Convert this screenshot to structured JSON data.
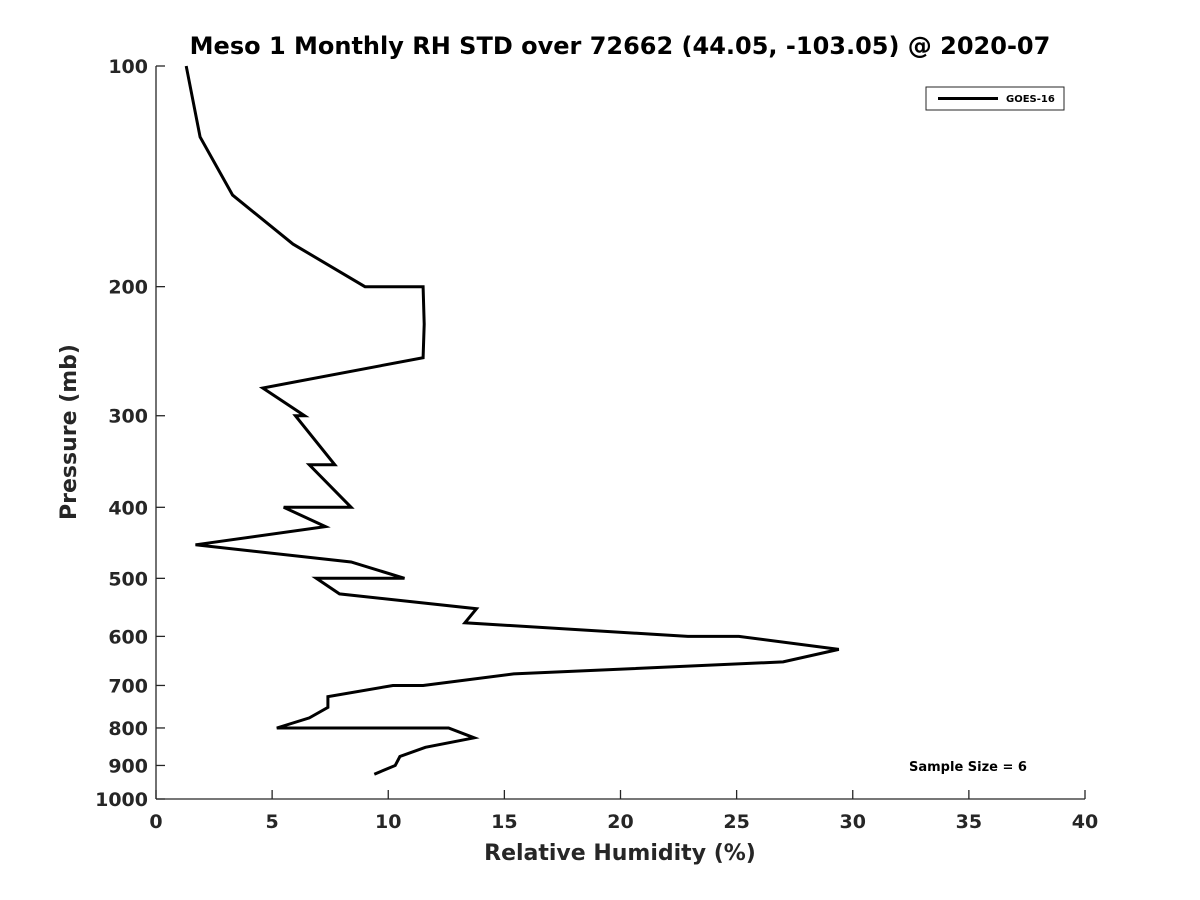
{
  "chart_data": {
    "type": "line",
    "title": "Meso 1 Monthly RH STD over 72662 (44.05, -103.05) @ 2020-07",
    "xlabel": "Relative Humidity (%)",
    "ylabel": "Pressure (mb)",
    "xlim": [
      0,
      40
    ],
    "ylim": [
      100,
      1000
    ],
    "y_scale": "log",
    "y_reversed": true,
    "x_ticks": [
      0,
      5,
      10,
      15,
      20,
      25,
      30,
      35,
      40
    ],
    "y_ticks": [
      100,
      200,
      300,
      400,
      500,
      600,
      700,
      800,
      900,
      1000
    ],
    "grid": false,
    "legend_position": "top-right",
    "annotation": "Sample Size = 6",
    "series": [
      {
        "name": "GOES-16",
        "color": "#000000",
        "points": [
          {
            "x": 1.3,
            "y": 100
          },
          {
            "x": 1.9,
            "y": 125
          },
          {
            "x": 3.3,
            "y": 150
          },
          {
            "x": 5.9,
            "y": 175
          },
          {
            "x": 9.0,
            "y": 200
          },
          {
            "x": 11.5,
            "y": 200
          },
          {
            "x": 11.55,
            "y": 225
          },
          {
            "x": 11.5,
            "y": 250
          },
          {
            "x": 4.6,
            "y": 275
          },
          {
            "x": 6.4,
            "y": 300
          },
          {
            "x": 6.0,
            "y": 300
          },
          {
            "x": 7.7,
            "y": 350
          },
          {
            "x": 6.6,
            "y": 350
          },
          {
            "x": 8.4,
            "y": 400
          },
          {
            "x": 5.5,
            "y": 400
          },
          {
            "x": 7.3,
            "y": 425
          },
          {
            "x": 1.7,
            "y": 450
          },
          {
            "x": 8.4,
            "y": 475
          },
          {
            "x": 10.7,
            "y": 500
          },
          {
            "x": 6.9,
            "y": 500
          },
          {
            "x": 7.9,
            "y": 525
          },
          {
            "x": 13.8,
            "y": 550
          },
          {
            "x": 13.3,
            "y": 575
          },
          {
            "x": 22.9,
            "y": 600
          },
          {
            "x": 25.1,
            "y": 600
          },
          {
            "x": 29.4,
            "y": 625
          },
          {
            "x": 27.0,
            "y": 650
          },
          {
            "x": 15.4,
            "y": 675
          },
          {
            "x": 11.5,
            "y": 700
          },
          {
            "x": 10.2,
            "y": 700
          },
          {
            "x": 7.4,
            "y": 725
          },
          {
            "x": 7.4,
            "y": 750
          },
          {
            "x": 6.6,
            "y": 775
          },
          {
            "x": 5.2,
            "y": 800
          },
          {
            "x": 12.6,
            "y": 800
          },
          {
            "x": 13.7,
            "y": 825
          },
          {
            "x": 11.6,
            "y": 850
          },
          {
            "x": 10.5,
            "y": 875
          },
          {
            "x": 10.3,
            "y": 900
          },
          {
            "x": 9.4,
            "y": 925
          }
        ]
      }
    ]
  }
}
